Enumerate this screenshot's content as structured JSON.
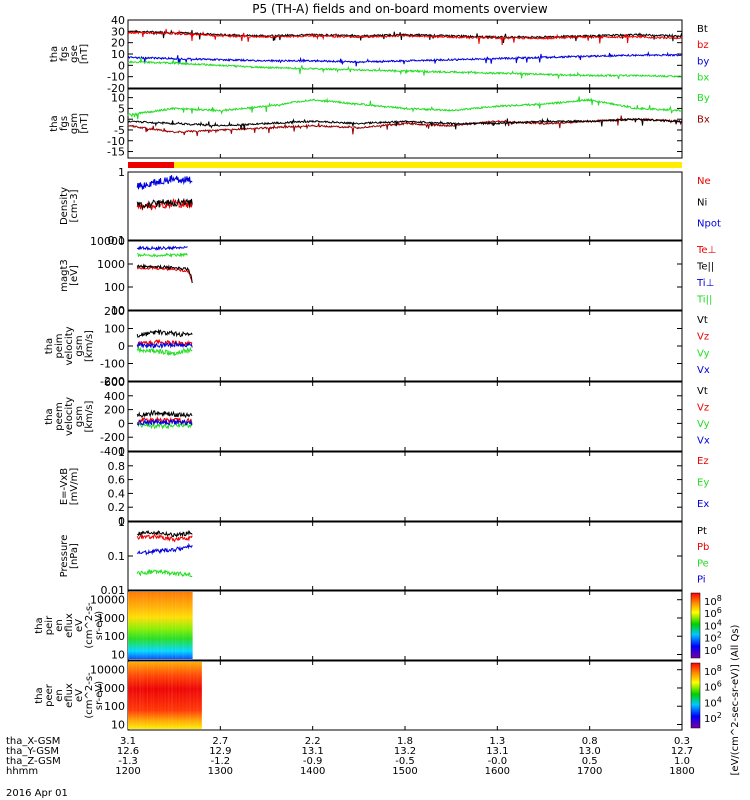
{
  "title": "P5 (TH-A) fields and on-board moments overview",
  "date_label": "2016 Apr 01",
  "xaxis": {
    "range": [
      1200,
      1800
    ],
    "ticks": [
      1200,
      1300,
      1400,
      1500,
      1600,
      1700,
      1800
    ],
    "rows": [
      {
        "name": "tha_X-GSM",
        "values": [
          "3.1",
          "2.7",
          "2.2",
          "1.8",
          "1.3",
          "0.8",
          "0.3"
        ]
      },
      {
        "name": "tha_Y-GSM",
        "values": [
          "12.6",
          "12.9",
          "13.1",
          "13.2",
          "13.1",
          "13.0",
          "12.7"
        ]
      },
      {
        "name": "tha_Z-GSM",
        "values": [
          "-1.3",
          "-1.2",
          "-0.9",
          "-0.5",
          "-0.0",
          "0.5",
          "1.0"
        ]
      },
      {
        "name": "hhmm",
        "values": [
          "1200",
          "1300",
          "1400",
          "1500",
          "1600",
          "1700",
          "1800"
        ]
      }
    ]
  },
  "colorbar_label": "[eV/(cm^2-sec-sr-eV)] (All Qs)",
  "colorbar_ticks_top": [
    "10^8",
    "10^6",
    "10^4",
    "10^2",
    "10^0"
  ],
  "colorbar_ticks_bottom": [
    "10^8",
    "10^6",
    "10^4",
    "10^2"
  ],
  "colors": {
    "black": "#000000",
    "red": "#ee0000",
    "green": "#22dd22",
    "blue": "#0000dd",
    "darkred": "#990000",
    "mode_red": "#ee0000",
    "mode_yellow": "#ffee00"
  },
  "mode_bar": {
    "red_end": 1250,
    "yellow_end": 1800
  },
  "chart_data": [
    {
      "type": "line",
      "ylabel": [
        "tha",
        "fgs",
        "gse",
        "[nT]"
      ],
      "ylim": [
        -20,
        40
      ],
      "yticks": [
        -20,
        -10,
        0,
        10,
        20,
        30,
        40
      ],
      "x": [
        1200,
        1250,
        1300,
        1350,
        1400,
        1450,
        1500,
        1550,
        1600,
        1650,
        1700,
        1750,
        1800
      ],
      "series": [
        {
          "name": "Bt",
          "color": "black",
          "values": [
            30,
            29,
            27,
            26,
            27,
            26,
            27,
            26,
            25,
            25,
            26,
            27,
            26
          ]
        },
        {
          "name": "bz",
          "color": "red",
          "values": [
            29,
            28,
            26,
            25,
            26,
            25,
            26,
            25,
            24,
            24,
            25,
            25,
            24
          ]
        },
        {
          "name": "by",
          "color": "blue",
          "values": [
            7,
            6,
            5,
            4,
            4,
            3,
            4,
            5,
            6,
            7,
            8,
            9,
            9
          ]
        },
        {
          "name": "bx",
          "color": "green",
          "values": [
            3,
            2,
            0,
            -2,
            -3,
            -4,
            -5,
            -6,
            -7,
            -8,
            -9,
            -9,
            -10
          ]
        }
      ]
    },
    {
      "type": "line",
      "ylabel": [
        "tha",
        "fgs",
        "gsm",
        "[nT]"
      ],
      "ylim": [
        -18,
        14
      ],
      "yticks": [
        -15,
        -10,
        -5,
        0,
        5,
        10
      ],
      "x": [
        1200,
        1250,
        1300,
        1350,
        1400,
        1450,
        1500,
        1550,
        1600,
        1650,
        1700,
        1750,
        1800
      ],
      "series": [
        {
          "name": "By",
          "color": "green",
          "values": [
            2,
            5,
            4,
            6,
            9,
            7,
            5,
            4,
            6,
            7,
            9,
            5,
            4
          ]
        },
        {
          "name": "Bx",
          "color": "darkred",
          "values": [
            -3,
            -6,
            -5,
            -4,
            -3,
            -4,
            -2,
            -3,
            -1,
            -2,
            -1,
            0,
            -1
          ]
        },
        {
          "name": "",
          "color": "black",
          "values": [
            -1,
            -2,
            -3,
            -2,
            -1,
            -2,
            -1,
            -2,
            -2,
            -1,
            -1,
            0,
            -1
          ]
        }
      ]
    },
    {
      "type": "line",
      "ylabel": [
        "Density",
        "[cm-3]"
      ],
      "log": true,
      "ylim": [
        0.1,
        1.0
      ],
      "yticks": [
        0.1,
        1.0
      ],
      "x": [
        1210,
        1230,
        1250,
        1270
      ],
      "series": [
        {
          "name": "Ne",
          "color": "red",
          "values": [
            0.3,
            0.32,
            0.35,
            0.33
          ]
        },
        {
          "name": "Ni",
          "color": "black",
          "values": [
            0.32,
            0.34,
            0.36,
            0.35
          ]
        },
        {
          "name": "Npot",
          "color": "blue",
          "values": [
            0.6,
            0.7,
            0.8,
            0.75
          ]
        }
      ]
    },
    {
      "type": "line",
      "ylabel": [
        "magt3",
        "[eV]"
      ],
      "log": true,
      "ylim": [
        10,
        10000
      ],
      "yticks": [
        10,
        100,
        1000,
        10000
      ],
      "x": [
        1210,
        1230,
        1250,
        1265,
        1270
      ],
      "series": [
        {
          "name": "Te⊥",
          "color": "red",
          "values": [
            700,
            650,
            600,
            500,
            100
          ]
        },
        {
          "name": "Te||",
          "color": "black",
          "values": [
            800,
            750,
            700,
            600,
            120
          ]
        },
        {
          "name": "Ti⊥",
          "color": "blue",
          "values": [
            5000,
            4800,
            5000,
            5200,
            null
          ]
        },
        {
          "name": "Ti||",
          "color": "green",
          "values": [
            2500,
            2400,
            2500,
            2600,
            null
          ]
        }
      ]
    },
    {
      "type": "line",
      "ylabel": [
        "tha",
        "peim",
        "velocity",
        "gsm",
        "[km/s]"
      ],
      "ylim": [
        -200,
        200
      ],
      "yticks": [
        -200,
        -100,
        0,
        100,
        200
      ],
      "x": [
        1210,
        1230,
        1250,
        1270
      ],
      "series": [
        {
          "name": "Vt",
          "color": "black",
          "values": [
            60,
            80,
            70,
            60
          ]
        },
        {
          "name": "Vz",
          "color": "red",
          "values": [
            10,
            20,
            15,
            10
          ]
        },
        {
          "name": "Vy",
          "color": "green",
          "values": [
            -20,
            -30,
            -40,
            -20
          ]
        },
        {
          "name": "Vx",
          "color": "blue",
          "values": [
            5,
            0,
            10,
            5
          ]
        }
      ]
    },
    {
      "type": "line",
      "ylabel": [
        "tha",
        "peem",
        "velocity",
        "gsm",
        "[km/s]"
      ],
      "ylim": [
        -400,
        600
      ],
      "yticks": [
        -400,
        -200,
        0,
        200,
        400,
        600
      ],
      "x": [
        1210,
        1230,
        1250,
        1270
      ],
      "series": [
        {
          "name": "Vt",
          "color": "black",
          "values": [
            120,
            150,
            130,
            120
          ]
        },
        {
          "name": "Vz",
          "color": "red",
          "values": [
            40,
            50,
            45,
            40
          ]
        },
        {
          "name": "Vy",
          "color": "green",
          "values": [
            -20,
            -40,
            -30,
            -20
          ]
        },
        {
          "name": "Vx",
          "color": "blue",
          "values": [
            10,
            20,
            15,
            10
          ]
        }
      ]
    },
    {
      "type": "line",
      "ylabel": [
        "E=-VxB",
        "[mV/m]"
      ],
      "ylim": [
        0,
        1.0
      ],
      "yticks": [
        0.0,
        0.2,
        0.4,
        0.6,
        0.8,
        1.0
      ],
      "x": [],
      "series": [
        {
          "name": "Ez",
          "color": "red",
          "values": []
        },
        {
          "name": "Ey",
          "color": "green",
          "values": []
        },
        {
          "name": "Ex",
          "color": "blue",
          "values": []
        }
      ]
    },
    {
      "type": "line",
      "ylabel": [
        "Pressure",
        "[nPa]"
      ],
      "log": true,
      "ylim": [
        0.01,
        1.0
      ],
      "yticks": [
        0.01,
        0.1,
        1.0
      ],
      "x": [
        1210,
        1230,
        1250,
        1270
      ],
      "series": [
        {
          "name": "Pt",
          "color": "black",
          "values": [
            0.45,
            0.5,
            0.4,
            0.48
          ]
        },
        {
          "name": "Pb",
          "color": "red",
          "values": [
            0.35,
            0.38,
            0.3,
            0.35
          ]
        },
        {
          "name": "Pe",
          "color": "green",
          "values": [
            0.03,
            0.035,
            0.03,
            0.028
          ]
        },
        {
          "name": "Pi",
          "color": "blue",
          "values": [
            0.12,
            0.14,
            0.15,
            0.2
          ]
        }
      ]
    },
    {
      "type": "heatmap",
      "ylabel": [
        "tha",
        "peir",
        "en",
        "eflux",
        "eV",
        "(cm^2-s-",
        "sr-eV)"
      ],
      "log": true,
      "ylim": [
        5,
        30000
      ],
      "yticks": [
        10,
        100,
        1000,
        10000
      ],
      "x_range": [
        1200,
        1270
      ]
    },
    {
      "type": "heatmap",
      "ylabel": [
        "tha",
        "peer",
        "en",
        "eflux",
        "eV",
        "(cm^2-s-",
        "sr-eV)"
      ],
      "log": true,
      "ylim": [
        5,
        30000
      ],
      "yticks": [
        10,
        100,
        1000,
        10000
      ],
      "x_range": [
        1200,
        1280
      ]
    }
  ]
}
